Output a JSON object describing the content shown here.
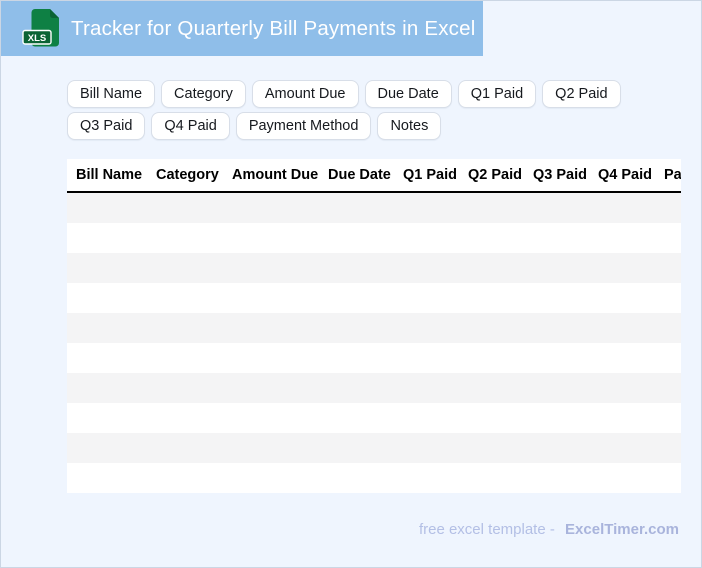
{
  "header": {
    "title": "Tracker for Quarterly Bill Payments in Excel",
    "file_badge": "XLS"
  },
  "chips": [
    "Bill Name",
    "Category",
    "Amount Due",
    "Due Date",
    "Q1 Paid",
    "Q2 Paid",
    "Q3 Paid",
    "Q4 Paid",
    "Payment Method",
    "Notes"
  ],
  "table": {
    "columns": [
      "Bill Name",
      "Category",
      "Amount Due",
      "Due Date",
      "Q1 Paid",
      "Q2 Paid",
      "Q3 Paid",
      "Q4 Paid",
      "Payment Method"
    ],
    "empty_row_count": 10
  },
  "footer": {
    "label": "free excel template -",
    "brand": "ExcelTimer.com"
  },
  "colors": {
    "header_bg": "#8FBEE9",
    "page_bg": "#EFF5FE",
    "frame_border": "#CBD6E4",
    "chip_border": "#D8DEE8",
    "row_stripe": "#F4F4F5",
    "icon_green": "#0E8044",
    "icon_green_dark": "#0B6334",
    "footer_text": "#B3BFE5",
    "footer_brand": "#A9B4DC"
  }
}
